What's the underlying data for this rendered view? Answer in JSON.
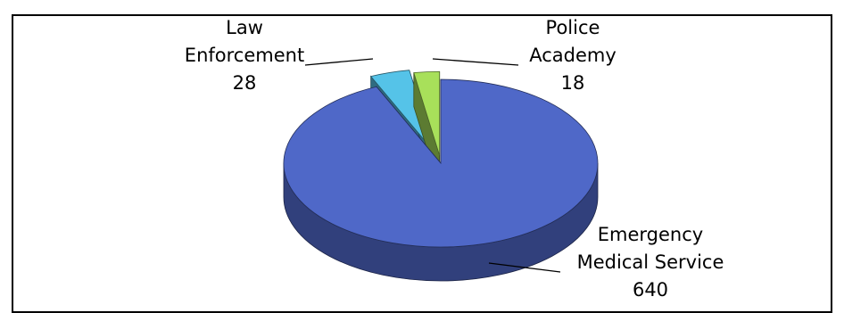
{
  "chart_data": {
    "type": "pie",
    "title": "",
    "categories": [
      "Emergency Medical Service",
      "Law Enforcement",
      "Police Academy"
    ],
    "values": [
      640,
      28,
      18
    ],
    "labels": [
      {
        "lines": [
          "Emergency",
          "Medical Service"
        ],
        "value": "640"
      },
      {
        "lines": [
          "Law",
          "Enforcement"
        ],
        "value": "28"
      },
      {
        "lines": [
          "Police",
          "Academy"
        ],
        "value": "18"
      }
    ],
    "colors": [
      "#4F68C8",
      "#55C3E8",
      "#A8E05A"
    ],
    "legend": "none",
    "style": "3d-exploded"
  }
}
